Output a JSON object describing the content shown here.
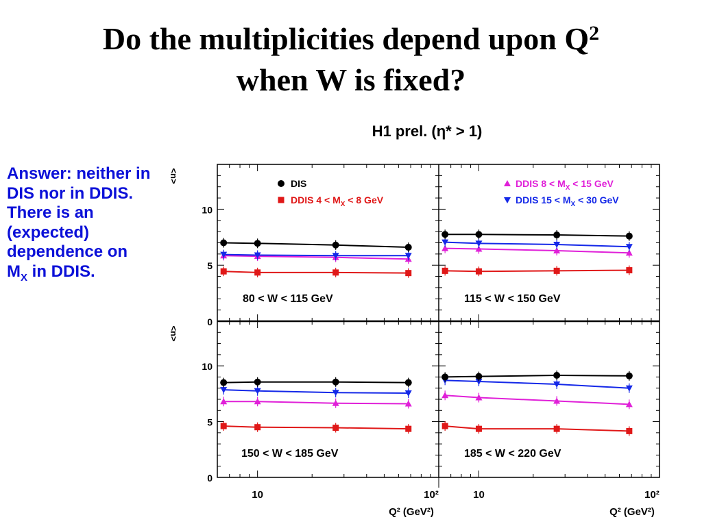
{
  "slide": {
    "title_line1": "Do the multiplicities depend upon Q",
    "title_sup": "2",
    "title_line2": "when W is fixed?",
    "answer_pre": "Answer: neither in DIS nor in DDIS. There is an (expected) dependence on M",
    "answer_sub": "X",
    "answer_post": " in DDIS."
  },
  "chart_data": {
    "type": "scatter",
    "title": "H1 prel. (η* > 1)",
    "xlabel": "Q² (GeV²)",
    "ylabel": "<n>",
    "xscale": "log",
    "xlim": [
      6,
      100
    ],
    "ylim": [
      0,
      14
    ],
    "x_ticks": [
      "10",
      "10²"
    ],
    "y_ticks": [
      "0",
      "5",
      "10"
    ],
    "legend": [
      {
        "series": "DIS",
        "label": "DIS",
        "panel": "top-left"
      },
      {
        "series": "DDIS_4_8",
        "label": "DDIS 4 < M_X < 8 GeV",
        "panel": "top-left"
      },
      {
        "series": "DDIS_8_15",
        "label": "DDIS 8 < M_X < 15 GeV",
        "panel": "top-right"
      },
      {
        "series": "DDIS_15_30",
        "label": "DDIS 15 < M_X < 30 GeV",
        "panel": "top-right"
      }
    ],
    "styles": {
      "DIS": {
        "color": "#000000",
        "marker": "circle"
      },
      "DDIS_4_8": {
        "color": "#e01818",
        "marker": "square"
      },
      "DDIS_8_15": {
        "color": "#e020d8",
        "marker": "triangle-up"
      },
      "DDIS_15_30": {
        "color": "#1428e8",
        "marker": "triangle-down"
      }
    },
    "panels": [
      {
        "label": "80  < W < 115 GeV",
        "series": {
          "DIS": {
            "x": [
              6.5,
              10,
              27,
              68
            ],
            "y": [
              7.0,
              6.95,
              6.8,
              6.6
            ]
          },
          "DDIS_15_30": {
            "x": [
              6.5,
              10,
              27,
              68
            ],
            "y": [
              5.95,
              5.9,
              5.85,
              5.85
            ]
          },
          "DDIS_8_15": {
            "x": [
              6.5,
              10,
              27,
              68
            ],
            "y": [
              5.85,
              5.8,
              5.7,
              5.55
            ]
          },
          "DDIS_4_8": {
            "x": [
              6.5,
              10,
              27,
              68
            ],
            "y": [
              4.45,
              4.35,
              4.35,
              4.3
            ]
          }
        }
      },
      {
        "label": "115  < W < 150 GeV",
        "series": {
          "DIS": {
            "x": [
              6.5,
              10,
              27,
              68
            ],
            "y": [
              7.75,
              7.75,
              7.7,
              7.6
            ]
          },
          "DDIS_15_30": {
            "x": [
              6.5,
              10,
              27,
              68
            ],
            "y": [
              7.05,
              6.95,
              6.85,
              6.65
            ]
          },
          "DDIS_8_15": {
            "x": [
              6.5,
              10,
              27,
              68
            ],
            "y": [
              6.5,
              6.45,
              6.3,
              6.1
            ]
          },
          "DDIS_4_8": {
            "x": [
              6.5,
              10,
              27,
              68
            ],
            "y": [
              4.5,
              4.45,
              4.5,
              4.55
            ]
          }
        }
      },
      {
        "label": "150  < W < 185 GeV",
        "series": {
          "DIS": {
            "x": [
              6.5,
              10,
              27,
              68
            ],
            "y": [
              8.5,
              8.55,
              8.55,
              8.5
            ]
          },
          "DDIS_15_30": {
            "x": [
              6.5,
              10,
              27,
              68
            ],
            "y": [
              7.85,
              7.75,
              7.6,
              7.55
            ]
          },
          "DDIS_8_15": {
            "x": [
              6.5,
              10,
              27,
              68
            ],
            "y": [
              6.8,
              6.8,
              6.65,
              6.6
            ]
          },
          "DDIS_4_8": {
            "x": [
              6.5,
              10,
              27,
              68
            ],
            "y": [
              4.6,
              4.5,
              4.45,
              4.35
            ]
          }
        }
      },
      {
        "label": "185  < W < 220 GeV",
        "series": {
          "DIS": {
            "x": [
              6.5,
              10,
              27,
              68
            ],
            "y": [
              9.0,
              9.05,
              9.15,
              9.1
            ]
          },
          "DDIS_15_30": {
            "x": [
              6.5,
              10,
              27,
              68
            ],
            "y": [
              8.7,
              8.6,
              8.35,
              8.0
            ]
          },
          "DDIS_8_15": {
            "x": [
              6.5,
              10,
              27,
              68
            ],
            "y": [
              7.35,
              7.15,
              6.85,
              6.55
            ]
          },
          "DDIS_4_8": {
            "x": [
              6.5,
              10,
              27,
              68
            ],
            "y": [
              4.6,
              4.35,
              4.35,
              4.15
            ]
          }
        }
      }
    ]
  }
}
